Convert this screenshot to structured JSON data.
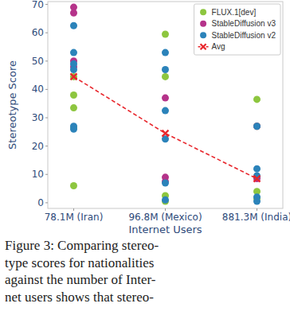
{
  "chart_data": {
    "type": "scatter",
    "x_label": "Internet Users",
    "y_label": "Stereotype Score",
    "categories": [
      "78.1M (Iran)",
      "96.8M (Mexico)",
      "881.3M (India)"
    ],
    "ylim": [
      -2,
      71
    ],
    "yticks": [
      0,
      10,
      20,
      30,
      40,
      50,
      60,
      70
    ],
    "grid": false,
    "legend": "upper right",
    "series": [
      {
        "name": "FLUX.1[dev]",
        "color": "#8dc63f",
        "marker": "circle",
        "x": [
          "78.1M (Iran)",
          "78.1M (Iran)",
          "78.1M (Iran)",
          "78.1M (Iran)",
          "78.1M (Iran)",
          "96.8M (Mexico)",
          "96.8M (Mexico)",
          "96.8M (Mexico)",
          "96.8M (Mexico)",
          "881.3M (India)",
          "881.3M (India)",
          "881.3M (India)",
          "881.3M (India)"
        ],
        "values": [
          44.5,
          38,
          33.5,
          26.5,
          6,
          59.5,
          44.5,
          2.5,
          0.5,
          36.5,
          27,
          4,
          1.5
        ]
      },
      {
        "name": "StableDiffusion v3",
        "color": "#b5338a",
        "marker": "circle",
        "x": [
          "78.1M (Iran)",
          "78.1M (Iran)",
          "78.1M (Iran)",
          "78.1M (Iran)",
          "96.8M (Mexico)",
          "96.8M (Mexico)",
          "96.8M (Mexico)",
          "881.3M (India)",
          "881.3M (India)",
          "881.3M (India)"
        ],
        "values": [
          69,
          67,
          50,
          48,
          37,
          9,
          7.5,
          27,
          9,
          8.5
        ]
      },
      {
        "name": "StableDiffusion v2",
        "color": "#2b83ba",
        "marker": "circle",
        "x": [
          "78.1M (Iran)",
          "78.1M (Iran)",
          "78.1M (Iran)",
          "78.1M (Iran)",
          "78.1M (Iran)",
          "78.1M (Iran)",
          "96.8M (Mexico)",
          "96.8M (Mexico)",
          "96.8M (Mexico)",
          "96.8M (Mexico)",
          "96.8M (Mexico)",
          "96.8M (Mexico)",
          "881.3M (India)",
          "881.3M (India)",
          "881.3M (India)",
          "881.3M (India)",
          "881.3M (India)"
        ],
        "values": [
          62.5,
          53,
          49,
          47,
          27,
          26,
          53,
          47,
          32.5,
          22.5,
          7,
          1,
          27,
          12,
          9.5,
          2,
          0.5
        ]
      },
      {
        "name": "Avg",
        "color": "#e8262c",
        "type": "line",
        "marker": "x",
        "line_style": "dashed",
        "x": [
          "78.1M (Iran)",
          "96.8M (Mexico)",
          "881.3M (India)"
        ],
        "values": [
          44.5,
          24.5,
          8.5
        ]
      }
    ]
  },
  "caption": [
    "Figure 3: Comparing stereo-",
    "type scores for nationalities",
    "against the number of Inter-",
    "net users shows that stereo-"
  ]
}
